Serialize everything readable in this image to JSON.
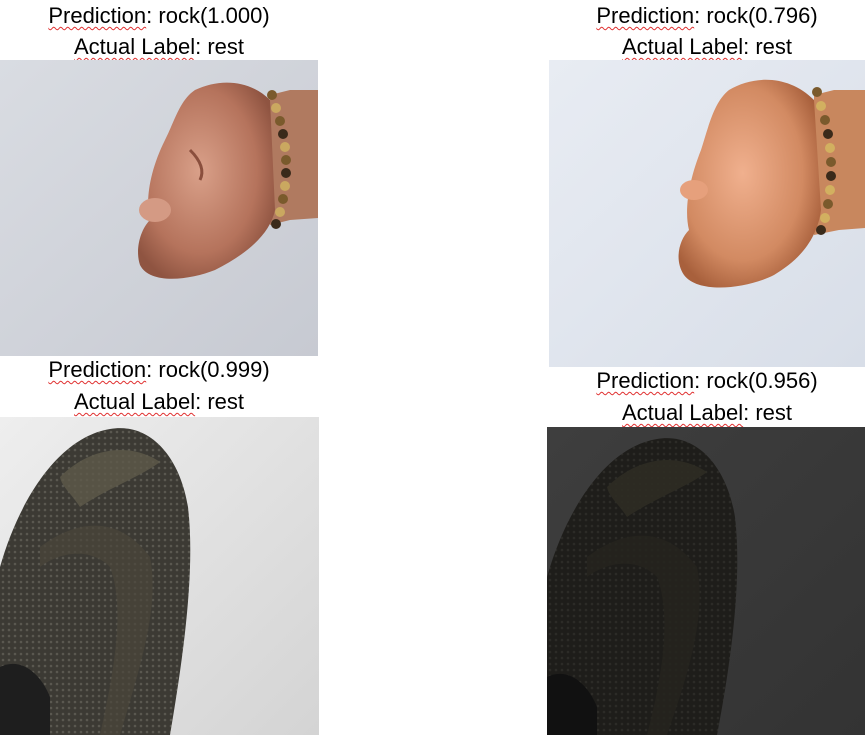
{
  "panels": [
    {
      "prediction_word": "Prediction",
      "prediction_rest": ": rock(1.000)",
      "actual_word": "Actual Label",
      "actual_rest": ": rest",
      "subject": "fist with beaded bracelet"
    },
    {
      "prediction_word": "Prediction",
      "prediction_rest": ": rock(0.796)",
      "actual_word": "Actual Label",
      "actual_rest": ": rest",
      "subject": "fist with beaded bracelet"
    },
    {
      "prediction_word": "Prediction",
      "prediction_rest": ": rock(0.999)",
      "actual_word": "Actual Label",
      "actual_rest": ": rest",
      "subject": "dark mesh shoe"
    },
    {
      "prediction_word": "Prediction",
      "prediction_rest": ": rock(0.956)",
      "actual_word": "Actual Label",
      "actual_rest": ": rest",
      "subject": "dark mesh shoe, dim"
    }
  ],
  "colors": {
    "squiggle": "#e03030",
    "background": "#ffffff"
  }
}
